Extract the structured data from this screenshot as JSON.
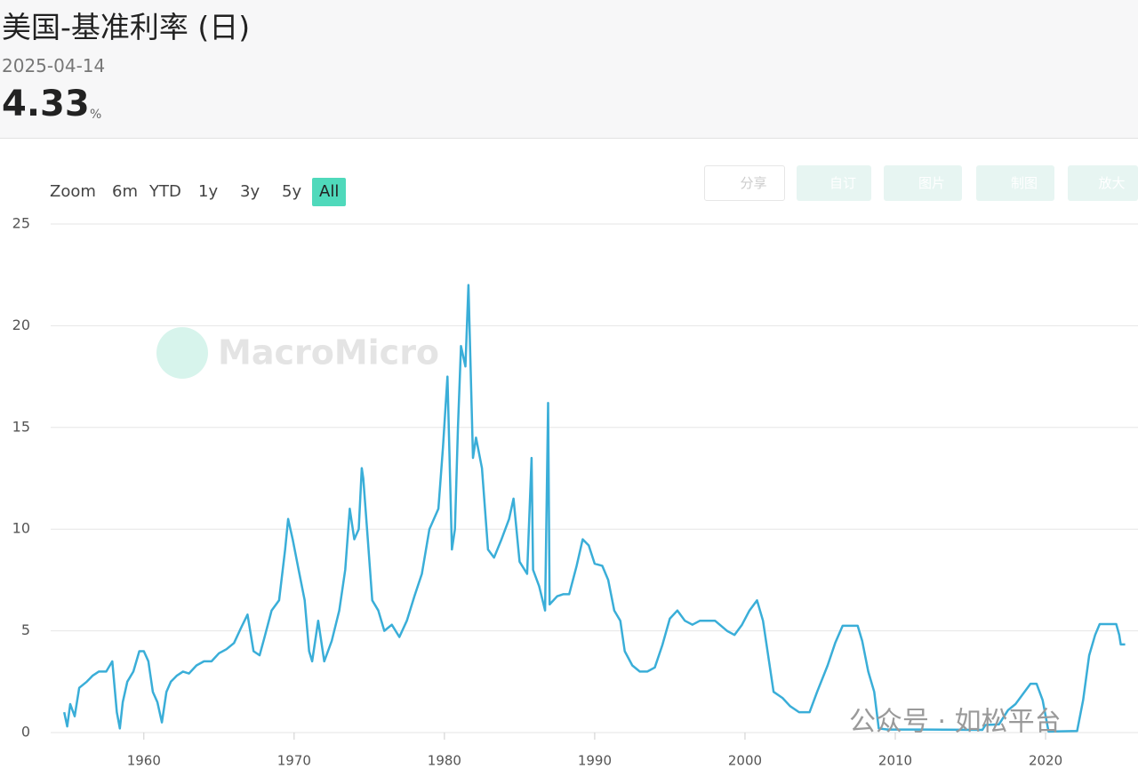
{
  "header": {
    "title": "美国-基准利率 (日)",
    "date": "2025-04-14",
    "value": "4.33",
    "unit": "%"
  },
  "controls": {
    "zoom_label": "Zoom",
    "ranges": [
      "6m",
      "YTD",
      "1y",
      "3y",
      "5y",
      "All"
    ],
    "active_range": "All",
    "toolbar": [
      "分享",
      "自订",
      "图片",
      "制图",
      "放大"
    ]
  },
  "watermarks": [
    "MacroMicro",
    "公众号 · 如松平台"
  ],
  "chart_data": {
    "type": "line",
    "color": "#3aaed8",
    "grid": true,
    "xlim": [
      1953.8,
      2026.15
    ],
    "xticks": [
      1960,
      1970,
      1980,
      1990,
      2000,
      2010,
      2020
    ],
    "ylim": [
      0,
      25
    ],
    "yticks": [
      0,
      5,
      10,
      15,
      20,
      25
    ],
    "x": [
      1954.7,
      1954.9,
      1955.1,
      1955.4,
      1955.7,
      1956.2,
      1956.6,
      1957.0,
      1957.5,
      1957.9,
      1958.2,
      1958.4,
      1958.6,
      1958.9,
      1959.3,
      1959.7,
      1960.0,
      1960.3,
      1960.6,
      1960.9,
      1961.2,
      1961.5,
      1961.8,
      1962.2,
      1962.6,
      1963.0,
      1963.5,
      1964.0,
      1964.5,
      1965.0,
      1965.5,
      1966.0,
      1966.5,
      1966.9,
      1967.3,
      1967.7,
      1968.0,
      1968.5,
      1969.0,
      1969.4,
      1969.6,
      1969.9,
      1970.3,
      1970.7,
      1971.0,
      1971.2,
      1971.6,
      1972.0,
      1972.5,
      1973.0,
      1973.4,
      1973.7,
      1974.0,
      1974.3,
      1974.5,
      1974.6,
      1974.9,
      1975.2,
      1975.6,
      1976.0,
      1976.5,
      1977.0,
      1977.5,
      1978.0,
      1978.5,
      1979.0,
      1979.6,
      1979.9,
      1980.2,
      1980.5,
      1980.7,
      1980.9,
      1981.1,
      1981.4,
      1981.6,
      1981.9,
      1982.1,
      1982.5,
      1982.9,
      1983.3,
      1983.8,
      1984.3,
      1984.6,
      1985.0,
      1985.5,
      1985.8,
      1985.9,
      1986.3,
      1986.7,
      1986.9,
      1987.0,
      1987.5,
      1987.9,
      1988.3,
      1988.8,
      1989.2,
      1989.6,
      1990.0,
      1990.5,
      1990.9,
      1991.3,
      1991.7,
      1992.0,
      1992.5,
      1993.0,
      1993.5,
      1994.0,
      1994.5,
      1995.0,
      1995.5,
      1996.0,
      1996.5,
      1997.0,
      1997.5,
      1998.0,
      1998.8,
      1999.3,
      1999.8,
      2000.3,
      2000.8,
      2001.2,
      2001.6,
      2001.9,
      2002.5,
      2003.0,
      2003.6,
      2004.3,
      2004.8,
      2005.5,
      2006.0,
      2006.5,
      2007.5,
      2007.8,
      2008.2,
      2008.6,
      2008.9,
      2009.5,
      2012.0,
      2015.8,
      2016.0,
      2016.9,
      2017.5,
      2018.0,
      2018.5,
      2019.0,
      2019.4,
      2019.8,
      2020.2,
      2022.1,
      2022.5,
      2022.9,
      2023.3,
      2023.6,
      2024.7,
      2024.9,
      2025.0,
      2025.3
    ],
    "values": [
      1.0,
      0.3,
      1.4,
      0.8,
      2.2,
      2.5,
      2.8,
      3.0,
      3.0,
      3.5,
      1.0,
      0.2,
      1.5,
      2.5,
      3.0,
      4.0,
      4.0,
      3.5,
      2.0,
      1.5,
      0.5,
      2.0,
      2.5,
      2.8,
      3.0,
      2.9,
      3.3,
      3.5,
      3.5,
      3.9,
      4.1,
      4.4,
      5.2,
      5.8,
      4.0,
      3.8,
      4.6,
      6.0,
      6.5,
      9.0,
      10.5,
      9.5,
      8.0,
      6.5,
      4.0,
      3.5,
      5.5,
      3.5,
      4.5,
      6.0,
      8.0,
      11.0,
      9.5,
      10.0,
      13.0,
      12.5,
      9.5,
      6.5,
      6.0,
      5.0,
      5.3,
      4.7,
      5.5,
      6.7,
      7.8,
      10.0,
      11.0,
      14.0,
      17.5,
      9.0,
      10.0,
      15.0,
      19.0,
      18.0,
      22.0,
      13.5,
      14.5,
      13.0,
      9.0,
      8.6,
      9.5,
      10.5,
      11.5,
      8.4,
      7.8,
      13.5,
      8.0,
      7.2,
      6.0,
      16.2,
      6.3,
      6.7,
      6.8,
      6.8,
      8.2,
      9.5,
      9.2,
      8.3,
      8.2,
      7.5,
      6.0,
      5.5,
      4.0,
      3.3,
      3.0,
      3.0,
      3.2,
      4.3,
      5.6,
      6.0,
      5.5,
      5.3,
      5.5,
      5.5,
      5.5,
      5.0,
      4.8,
      5.3,
      6.0,
      6.5,
      5.5,
      3.5,
      2.0,
      1.7,
      1.3,
      1.0,
      1.0,
      2.0,
      3.3,
      4.4,
      5.25,
      5.25,
      4.5,
      3.0,
      2.0,
      0.2,
      0.15,
      0.15,
      0.13,
      0.37,
      0.4,
      1.1,
      1.4,
      1.9,
      2.4,
      2.4,
      1.6,
      0.05,
      0.08,
      1.6,
      3.8,
      4.8,
      5.33,
      5.33,
      4.8,
      4.33,
      4.33
    ]
  }
}
